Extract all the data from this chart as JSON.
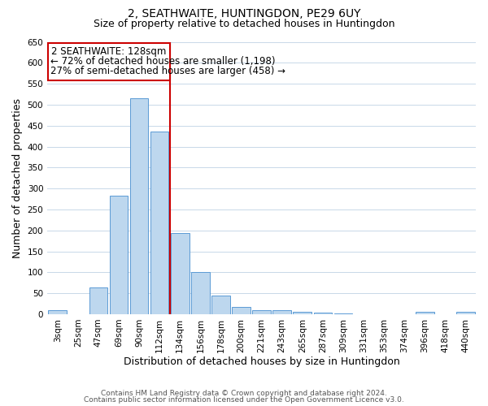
{
  "title": "2, SEATHWAITE, HUNTINGDON, PE29 6UY",
  "subtitle": "Size of property relative to detached houses in Huntingdon",
  "xlabel": "Distribution of detached houses by size in Huntingdon",
  "ylabel": "Number of detached properties",
  "bin_labels": [
    "3sqm",
    "25sqm",
    "47sqm",
    "69sqm",
    "90sqm",
    "112sqm",
    "134sqm",
    "156sqm",
    "178sqm",
    "200sqm",
    "221sqm",
    "243sqm",
    "265sqm",
    "287sqm",
    "309sqm",
    "331sqm",
    "353sqm",
    "374sqm",
    "396sqm",
    "418sqm",
    "440sqm"
  ],
  "bar_values": [
    10,
    0,
    63,
    282,
    515,
    435,
    193,
    100,
    45,
    18,
    10,
    10,
    5,
    3,
    1,
    0,
    0,
    0,
    5,
    0,
    5
  ],
  "bar_color": "#bdd7ee",
  "bar_edge_color": "#5b9bd5",
  "ylim": [
    0,
    650
  ],
  "yticks": [
    0,
    50,
    100,
    150,
    200,
    250,
    300,
    350,
    400,
    450,
    500,
    550,
    600,
    650
  ],
  "vline_color": "#cc0000",
  "annotation_title": "2 SEATHWAITE: 128sqm",
  "annotation_line1": "← 72% of detached houses are smaller (1,198)",
  "annotation_line2": "27% of semi-detached houses are larger (458) →",
  "annotation_box_color": "#cc0000",
  "footer1": "Contains HM Land Registry data © Crown copyright and database right 2024.",
  "footer2": "Contains public sector information licensed under the Open Government Licence v3.0.",
  "bg_color": "#ffffff",
  "grid_color": "#c8d8e8",
  "title_fontsize": 10,
  "subtitle_fontsize": 9,
  "axis_label_fontsize": 9,
  "tick_fontsize": 7.5,
  "annotation_fontsize": 8.5,
  "footer_fontsize": 6.5
}
